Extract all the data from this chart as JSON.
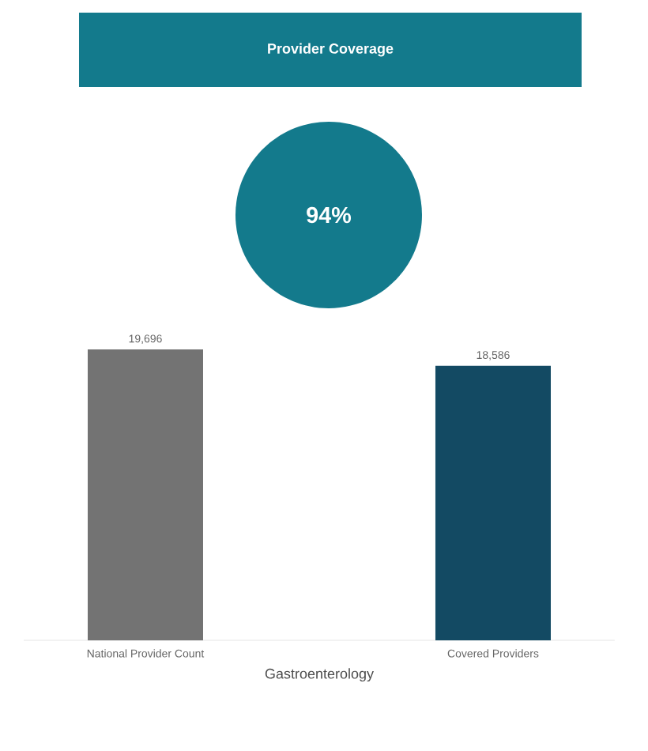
{
  "chart_data": {
    "type": "bar",
    "title": "Provider Coverage",
    "annotations": [
      "94%"
    ],
    "xlabel": "Gastroenterology",
    "categories": [
      "National Provider Count",
      "Covered Providers"
    ],
    "values": [
      19696,
      18586
    ],
    "colors": [
      "#737373",
      "#134a63"
    ],
    "value_labels": [
      "19,696",
      "18,586"
    ]
  }
}
